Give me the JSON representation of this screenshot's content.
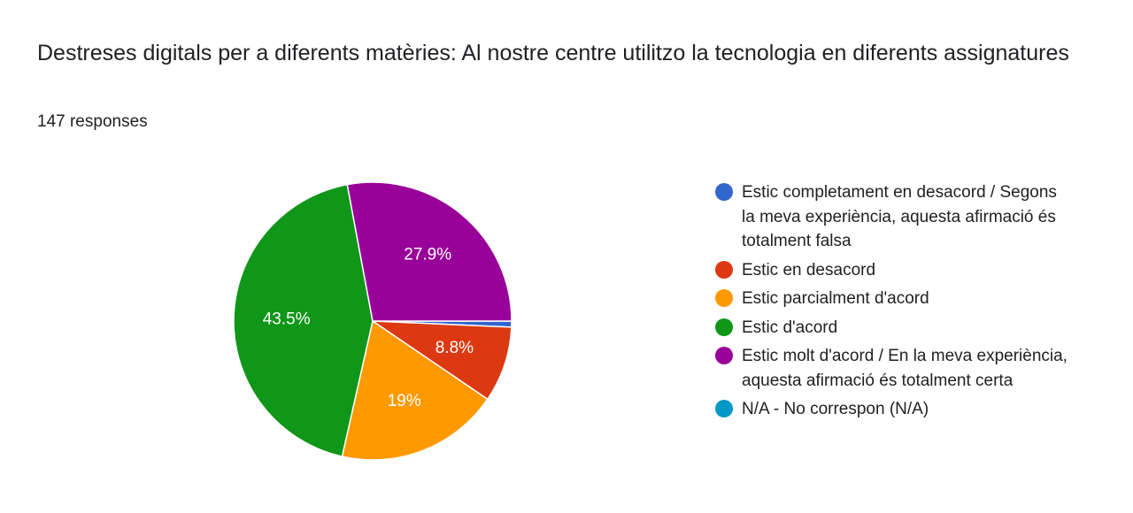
{
  "header": {
    "title": "Destreses digitals per a diferents matèries: Al nostre centre utilitzo la tecnologia en diferents assignatures",
    "responses": "147 responses"
  },
  "chart_data": {
    "type": "pie",
    "title": "Destreses digitals per a diferents matèries: Al nostre centre utilitzo la tecnologia en diferents assignatures",
    "slices": [
      {
        "label": "Estic completament en desacord / Segons la meva experiència, aquesta afirmació és totalment falsa",
        "value": 0.7,
        "display": "",
        "color": "#3366cc"
      },
      {
        "label": "Estic en desacord",
        "value": 8.8,
        "display": "8.8%",
        "color": "#dc3912"
      },
      {
        "label": "Estic parcialment d'acord",
        "value": 19.0,
        "display": "19%",
        "color": "#ff9900"
      },
      {
        "label": "Estic d'acord",
        "value": 43.5,
        "display": "43.5%",
        "color": "#109618"
      },
      {
        "label": "Estic molt d'acord / En la meva experiència, aquesta afirmació és totalment certa",
        "value": 27.9,
        "display": "27.9%",
        "color": "#990099"
      },
      {
        "label": "N/A - No correspon (N/A)",
        "value": 0,
        "display": "",
        "color": "#0099c6"
      }
    ],
    "legend_position": "right"
  }
}
